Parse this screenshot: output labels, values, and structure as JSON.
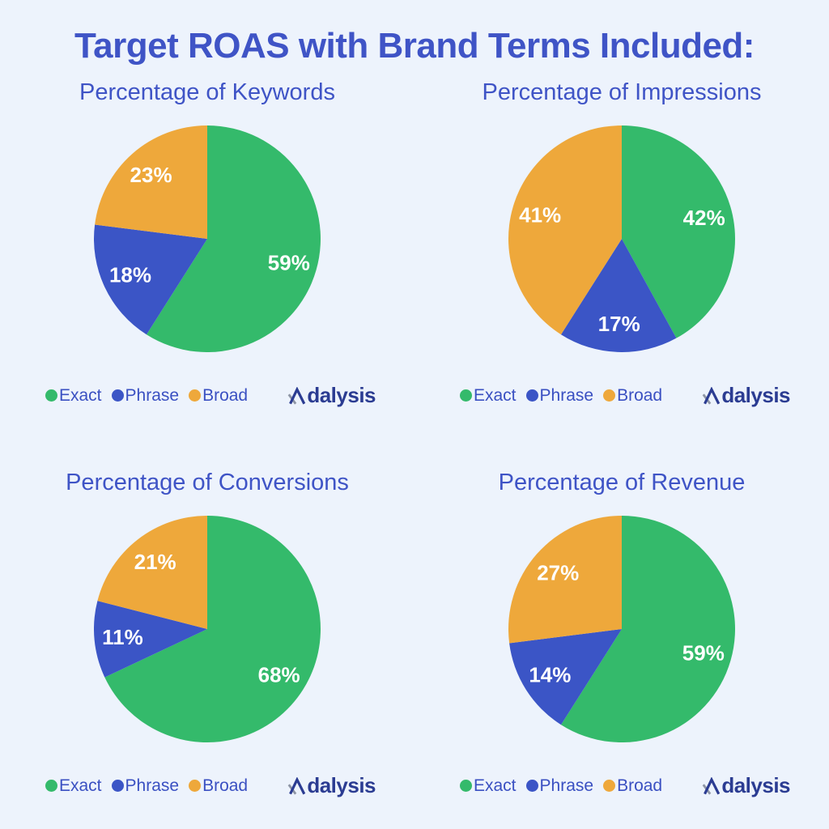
{
  "page": {
    "title": "Target ROAS with Brand Terms Included:",
    "background_color": "#edf3fc",
    "title_color": "#3f54c6"
  },
  "colors": {
    "exact_green": "#34ba6b",
    "phrase_blue": "#3b55c6",
    "broad_orange": "#eea83b",
    "slice_label_text": "#ffffff",
    "legend_text": "#3a50c2",
    "heading_text": "#3f54c6",
    "logo_navy": "#2b3c92",
    "logo_gray": "#8e95a5"
  },
  "legend": {
    "items": [
      {
        "label": "Exact",
        "color": "#34ba6b"
      },
      {
        "label": "Phrase",
        "color": "#3b55c6"
      },
      {
        "label": "Broad",
        "color": "#eea83b"
      }
    ]
  },
  "logo": {
    "text": "Adalysis",
    "text_after_mark": "dalysis",
    "mark_color": "#2b3c92",
    "mark_accent_color": "#8e95a5"
  },
  "chart_data": [
    {
      "type": "pie",
      "title": "Percentage of Keywords",
      "categories": [
        "Exact",
        "Phrase",
        "Broad"
      ],
      "values": [
        59,
        18,
        23
      ],
      "labels": [
        "59%",
        "18%",
        "23%"
      ],
      "colors": [
        "#34ba6b",
        "#3b55c6",
        "#eea83b"
      ],
      "start_angle": "top",
      "direction": "clockwise",
      "legend_position": "bottom-left"
    },
    {
      "type": "pie",
      "title": "Percentage of Impressions",
      "categories": [
        "Exact",
        "Phrase",
        "Broad"
      ],
      "values": [
        42,
        17,
        41
      ],
      "labels": [
        "42%",
        "17%",
        "41%"
      ],
      "colors": [
        "#34ba6b",
        "#3b55c6",
        "#eea83b"
      ],
      "start_angle": "top",
      "direction": "clockwise",
      "legend_position": "bottom-left"
    },
    {
      "type": "pie",
      "title": "Percentage of Conversions",
      "categories": [
        "Exact",
        "Phrase",
        "Broad"
      ],
      "values": [
        68,
        11,
        21
      ],
      "labels": [
        "68%",
        "11%",
        "21%"
      ],
      "colors": [
        "#34ba6b",
        "#3b55c6",
        "#eea83b"
      ],
      "start_angle": "top",
      "direction": "clockwise",
      "legend_position": "bottom-left"
    },
    {
      "type": "pie",
      "title": "Percentage of Revenue",
      "categories": [
        "Exact",
        "Phrase",
        "Broad"
      ],
      "values": [
        59,
        14,
        27
      ],
      "labels": [
        "59%",
        "14%",
        "27%"
      ],
      "colors": [
        "#34ba6b",
        "#3b55c6",
        "#eea83b"
      ],
      "start_angle": "top",
      "direction": "clockwise",
      "legend_position": "bottom-left"
    }
  ]
}
